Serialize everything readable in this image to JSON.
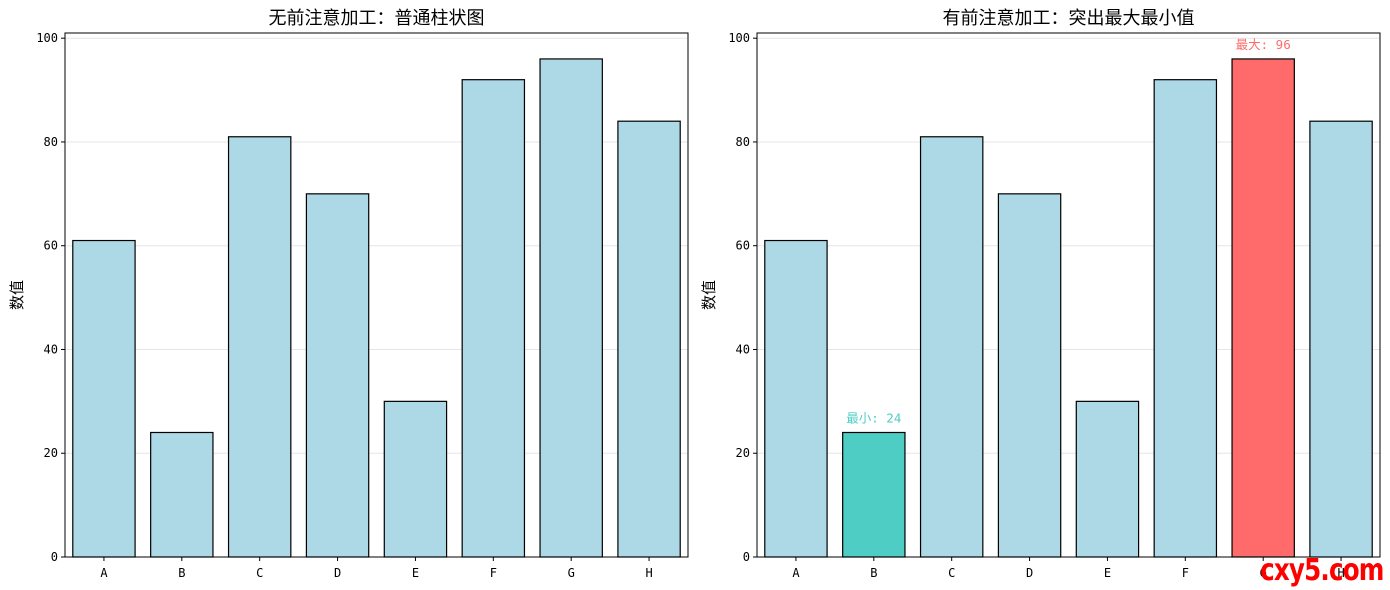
{
  "watermark": "cxy5.com",
  "chart_data": [
    {
      "type": "bar",
      "title": "无前注意加工：普通柱状图",
      "xlabel": "",
      "ylabel": "数值",
      "categories": [
        "A",
        "B",
        "C",
        "D",
        "E",
        "F",
        "G",
        "H"
      ],
      "values": [
        61,
        24,
        81,
        70,
        30,
        92,
        96,
        84
      ],
      "ylim": [
        0,
        101
      ],
      "yticks": [
        0,
        20,
        40,
        60,
        80,
        100
      ],
      "grid": "horizontal",
      "bar_color": "#add8e6",
      "edge_color": "#000000",
      "highlights": [],
      "annotations": []
    },
    {
      "type": "bar",
      "title": "有前注意加工：突出最大最小值",
      "xlabel": "",
      "ylabel": "数值",
      "categories": [
        "A",
        "B",
        "C",
        "D",
        "E",
        "F",
        "G",
        "H"
      ],
      "values": [
        61,
        24,
        81,
        70,
        30,
        92,
        96,
        84
      ],
      "ylim": [
        0,
        101
      ],
      "yticks": [
        0,
        20,
        40,
        60,
        80,
        100
      ],
      "grid": "horizontal",
      "bar_color": "#add8e6",
      "edge_color": "#000000",
      "highlights": [
        {
          "category": "B",
          "color": "#4ecdc4"
        },
        {
          "category": "G",
          "color": "#ff6b6b"
        }
      ],
      "annotations": [
        {
          "category": "B",
          "text": "最小: 24",
          "color": "#4ecdc4"
        },
        {
          "category": "G",
          "text": "最大: 96",
          "color": "#ff6b6b"
        }
      ]
    }
  ]
}
